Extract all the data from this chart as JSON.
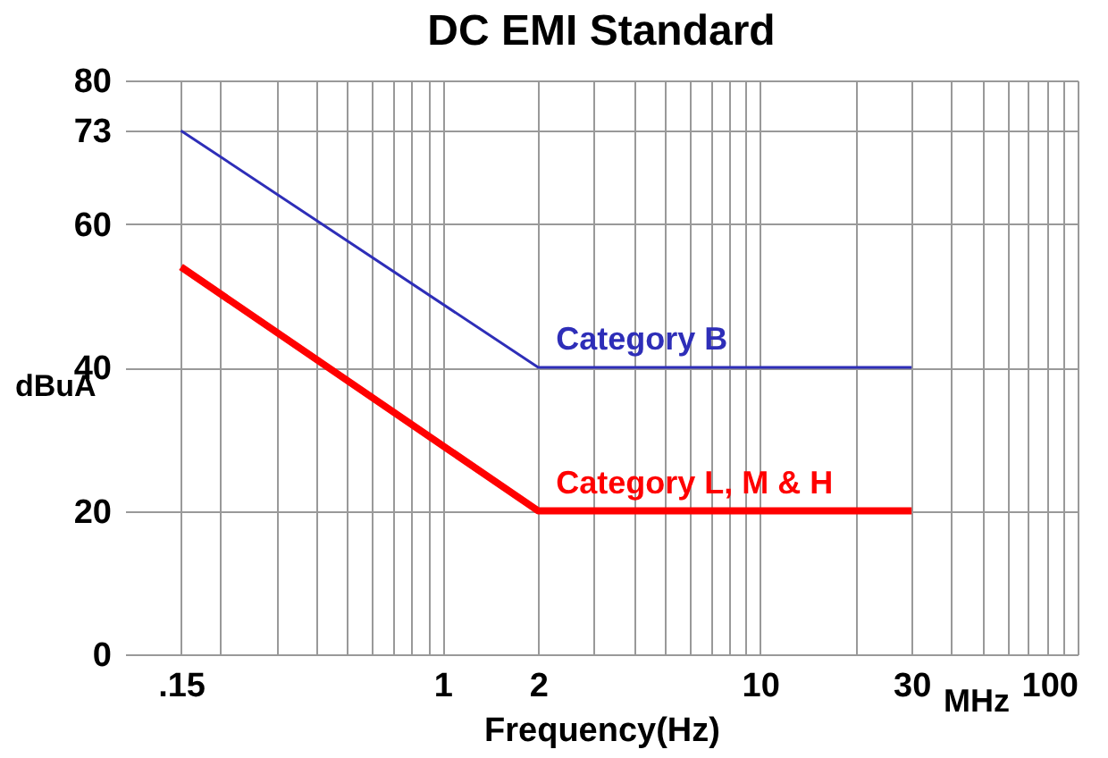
{
  "chart_data": {
    "type": "line",
    "title": "DC EMI Standard",
    "xlabel": "Frequency(Hz)",
    "ylabel": "dBuA",
    "annotations": [
      "MHz"
    ],
    "log": "x",
    "grid": true,
    "marker": "none",
    "xlim": [
      0.1,
      100
    ],
    "xticks": [
      {
        "value": 0.15,
        "label": ".15"
      },
      {
        "value": 0.2,
        "label": null
      },
      {
        "value": 0.3,
        "label": null
      },
      {
        "value": 0.4,
        "label": null
      },
      {
        "value": 0.5,
        "label": null
      },
      {
        "value": 0.6,
        "label": null
      },
      {
        "value": 0.7,
        "label": null
      },
      {
        "value": 0.8,
        "label": null
      },
      {
        "value": 0.9,
        "label": null
      },
      1,
      2,
      {
        "value": 3,
        "label": null
      },
      {
        "value": 4,
        "label": null
      },
      {
        "value": 5,
        "label": null
      },
      {
        "value": 6,
        "label": null
      },
      {
        "value": 7,
        "label": null
      },
      {
        "value": 8,
        "label": null
      },
      {
        "value": 9,
        "label": null
      },
      10,
      {
        "value": 20,
        "label": null
      },
      30,
      {
        "value": 40,
        "label": null
      },
      {
        "value": 50,
        "label": null
      },
      {
        "value": 60,
        "label": null
      },
      {
        "value": 70,
        "label": null
      },
      {
        "value": 80,
        "label": null
      },
      {
        "value": 90,
        "label": null
      },
      100
    ],
    "ylim": [
      0,
      80
    ],
    "yticks": [
      0,
      20,
      40,
      60,
      73,
      80
    ],
    "series": [
      {
        "name": "Category B",
        "color": "#2e2eb8",
        "x": [
          0.15,
          2,
          30
        ],
        "values": [
          73,
          40,
          40
        ]
      },
      {
        "name": "Category L, M & H",
        "color": "#ff0000",
        "x": [
          0.15,
          2,
          30
        ],
        "values": [
          54,
          20,
          20
        ]
      }
    ]
  }
}
